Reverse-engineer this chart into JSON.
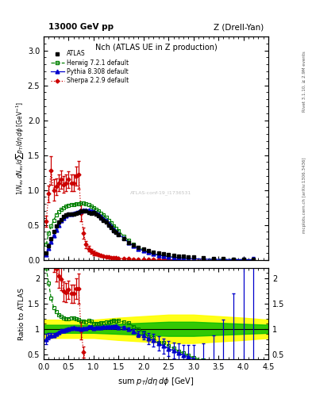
{
  "title_top_left": "13000 GeV pp",
  "title_top_right": "Z (Drell-Yan)",
  "plot_title": "Nch (ATLAS UE in Z production)",
  "ylabel_main": "1/N$_{ev}$ dN$_{ev}$/dsum p$_T$/d$\\eta$ d$\\phi$  [GeV$^{-1}$]",
  "ylabel_ratio": "Ratio to ATLAS",
  "xlabel": "sum p$_T$/d$\\eta$ d$\\phi$ [GeV]",
  "right_label1": "Rivet 3.1.10, ≥ 2.9M events",
  "right_label2": "mcplots.cern.ch [arXiv:1306.3436]",
  "watermark": "ATLAS-conf-19_I1736531",
  "atlas_x": [
    0.05,
    0.1,
    0.15,
    0.2,
    0.25,
    0.3,
    0.35,
    0.4,
    0.45,
    0.5,
    0.55,
    0.6,
    0.65,
    0.7,
    0.75,
    0.8,
    0.85,
    0.9,
    0.95,
    1.0,
    1.05,
    1.1,
    1.15,
    1.2,
    1.25,
    1.3,
    1.35,
    1.4,
    1.45,
    1.5,
    1.6,
    1.7,
    1.8,
    1.9,
    2.0,
    2.1,
    2.2,
    2.3,
    2.4,
    2.5,
    2.6,
    2.7,
    2.8,
    2.9,
    3.0,
    3.2,
    3.4,
    3.6,
    3.8,
    4.0,
    4.2
  ],
  "atlas_y": [
    0.1,
    0.2,
    0.3,
    0.4,
    0.48,
    0.54,
    0.58,
    0.62,
    0.64,
    0.65,
    0.65,
    0.65,
    0.67,
    0.68,
    0.7,
    0.7,
    0.7,
    0.68,
    0.67,
    0.68,
    0.65,
    0.63,
    0.6,
    0.57,
    0.54,
    0.5,
    0.46,
    0.42,
    0.39,
    0.36,
    0.3,
    0.25,
    0.21,
    0.18,
    0.15,
    0.13,
    0.11,
    0.095,
    0.083,
    0.072,
    0.063,
    0.055,
    0.048,
    0.042,
    0.037,
    0.028,
    0.022,
    0.017,
    0.013,
    0.01,
    0.008
  ],
  "atlas_yerr": [
    0.008,
    0.01,
    0.01,
    0.01,
    0.01,
    0.01,
    0.01,
    0.01,
    0.01,
    0.01,
    0.01,
    0.01,
    0.01,
    0.01,
    0.01,
    0.01,
    0.01,
    0.01,
    0.01,
    0.01,
    0.01,
    0.01,
    0.01,
    0.01,
    0.01,
    0.01,
    0.01,
    0.01,
    0.01,
    0.01,
    0.01,
    0.01,
    0.01,
    0.01,
    0.01,
    0.01,
    0.01,
    0.009,
    0.008,
    0.007,
    0.006,
    0.006,
    0.005,
    0.005,
    0.004,
    0.004,
    0.003,
    0.003,
    0.002,
    0.002,
    0.002
  ],
  "herwig_x": [
    0.05,
    0.1,
    0.15,
    0.2,
    0.25,
    0.3,
    0.35,
    0.4,
    0.45,
    0.5,
    0.55,
    0.6,
    0.65,
    0.7,
    0.75,
    0.8,
    0.85,
    0.9,
    0.95,
    1.0,
    1.05,
    1.1,
    1.15,
    1.2,
    1.25,
    1.3,
    1.35,
    1.4,
    1.45,
    1.5,
    1.6,
    1.7,
    1.8,
    1.9,
    2.0,
    2.1,
    2.2,
    2.3,
    2.4,
    2.5,
    2.6,
    2.7,
    2.8,
    2.9,
    3.0,
    3.2,
    3.4,
    3.6,
    3.8,
    4.0,
    4.2
  ],
  "herwig_y": [
    0.22,
    0.38,
    0.48,
    0.57,
    0.64,
    0.69,
    0.72,
    0.75,
    0.77,
    0.78,
    0.79,
    0.79,
    0.8,
    0.8,
    0.81,
    0.81,
    0.8,
    0.79,
    0.77,
    0.75,
    0.72,
    0.7,
    0.67,
    0.64,
    0.61,
    0.57,
    0.53,
    0.49,
    0.45,
    0.42,
    0.34,
    0.28,
    0.22,
    0.18,
    0.14,
    0.11,
    0.09,
    0.07,
    0.06,
    0.048,
    0.039,
    0.031,
    0.025,
    0.02,
    0.016,
    0.011,
    0.008,
    0.005,
    0.004,
    0.003,
    0.002
  ],
  "pythia_x": [
    0.05,
    0.1,
    0.15,
    0.2,
    0.25,
    0.3,
    0.35,
    0.4,
    0.45,
    0.5,
    0.55,
    0.6,
    0.65,
    0.7,
    0.75,
    0.8,
    0.85,
    0.9,
    0.95,
    1.0,
    1.05,
    1.1,
    1.15,
    1.2,
    1.25,
    1.3,
    1.35,
    1.4,
    1.45,
    1.5,
    1.6,
    1.7,
    1.8,
    1.9,
    2.0,
    2.1,
    2.2,
    2.3,
    2.4,
    2.5,
    2.6,
    2.7,
    2.8,
    2.9,
    3.0,
    3.2,
    3.4,
    3.6,
    3.8,
    4.0,
    4.2
  ],
  "pythia_y": [
    0.08,
    0.17,
    0.26,
    0.35,
    0.43,
    0.5,
    0.56,
    0.6,
    0.63,
    0.65,
    0.66,
    0.67,
    0.68,
    0.69,
    0.7,
    0.71,
    0.71,
    0.71,
    0.7,
    0.69,
    0.67,
    0.65,
    0.62,
    0.59,
    0.56,
    0.52,
    0.48,
    0.44,
    0.41,
    0.37,
    0.31,
    0.25,
    0.2,
    0.16,
    0.13,
    0.105,
    0.085,
    0.068,
    0.055,
    0.044,
    0.036,
    0.029,
    0.023,
    0.019,
    0.015,
    0.01,
    0.007,
    0.005,
    0.004,
    0.003,
    0.002
  ],
  "pythia_yerr": [
    0.01,
    0.012,
    0.014,
    0.014,
    0.014,
    0.014,
    0.014,
    0.014,
    0.014,
    0.013,
    0.013,
    0.012,
    0.012,
    0.012,
    0.012,
    0.012,
    0.012,
    0.012,
    0.012,
    0.011,
    0.011,
    0.01,
    0.01,
    0.01,
    0.009,
    0.009,
    0.009,
    0.008,
    0.008,
    0.008,
    0.008,
    0.008,
    0.008,
    0.01,
    0.012,
    0.014,
    0.014,
    0.013,
    0.012,
    0.011,
    0.01,
    0.01,
    0.01,
    0.01,
    0.01,
    0.01,
    0.012,
    0.015,
    0.018,
    0.025,
    0.04
  ],
  "sherpa_x": [
    0.05,
    0.1,
    0.15,
    0.2,
    0.25,
    0.3,
    0.35,
    0.4,
    0.45,
    0.5,
    0.55,
    0.6,
    0.65,
    0.7,
    0.75,
    0.8,
    0.85,
    0.9,
    0.95,
    1.0,
    1.05,
    1.1,
    1.15,
    1.2,
    1.25,
    1.3,
    1.35,
    1.4,
    1.45,
    1.5,
    1.6,
    1.7,
    1.8,
    1.9,
    2.0,
    2.1,
    2.2,
    2.3,
    2.4,
    2.5,
    2.6,
    2.7,
    2.8,
    2.9,
    3.0,
    3.2,
    3.4,
    3.6,
    3.8,
    4.0,
    4.2
  ],
  "sherpa_y": [
    0.55,
    0.95,
    1.28,
    1.0,
    1.05,
    1.1,
    1.15,
    1.08,
    1.1,
    1.15,
    1.1,
    1.1,
    1.2,
    1.22,
    0.67,
    0.38,
    0.22,
    0.16,
    0.12,
    0.1,
    0.085,
    0.072,
    0.062,
    0.053,
    0.046,
    0.04,
    0.035,
    0.03,
    0.026,
    0.023,
    0.018,
    0.014,
    0.011,
    0.009,
    0.008,
    0.007,
    0.006,
    0.005,
    0.004,
    0.004,
    0.003,
    0.003,
    0.002,
    0.002,
    0.002,
    0.001,
    0.001,
    0.001,
    0.001,
    0.001,
    0.001
  ],
  "sherpa_yerr": [
    0.08,
    0.12,
    0.2,
    0.15,
    0.12,
    0.12,
    0.13,
    0.12,
    0.12,
    0.12,
    0.12,
    0.12,
    0.14,
    0.2,
    0.12,
    0.08,
    0.05,
    0.04,
    0.03,
    0.03,
    0.025,
    0.02,
    0.018,
    0.015,
    0.013,
    0.012,
    0.01,
    0.009,
    0.008,
    0.007,
    0.006,
    0.005,
    0.004,
    0.003,
    0.003,
    0.003,
    0.002,
    0.002,
    0.002,
    0.002,
    0.001,
    0.001,
    0.001,
    0.001,
    0.001,
    0.001,
    0.001,
    0.001,
    0.001,
    0.001,
    0.001
  ],
  "atlas_color": "#000000",
  "herwig_color": "#008000",
  "pythia_color": "#0000cc",
  "sherpa_color": "#cc0000",
  "band_yellow": "#ffff00",
  "band_green": "#00bb00",
  "xlim": [
    0.0,
    4.5
  ],
  "ylim_main": [
    0.0,
    3.2
  ],
  "ylim_ratio": [
    0.4,
    2.2
  ],
  "ratio_band_x": [
    0.0,
    0.5,
    1.0,
    1.5,
    2.0,
    2.5,
    3.0,
    3.5,
    4.0,
    4.5
  ],
  "ratio_band_green_lo": [
    0.92,
    0.92,
    0.92,
    0.9,
    0.88,
    0.86,
    0.86,
    0.88,
    0.9,
    0.92
  ],
  "ratio_band_green_hi": [
    1.08,
    1.08,
    1.08,
    1.1,
    1.12,
    1.14,
    1.14,
    1.12,
    1.1,
    1.08
  ],
  "ratio_band_yellow_lo": [
    0.82,
    0.82,
    0.82,
    0.78,
    0.75,
    0.72,
    0.72,
    0.75,
    0.78,
    0.82
  ],
  "ratio_band_yellow_hi": [
    1.18,
    1.18,
    1.18,
    1.22,
    1.25,
    1.28,
    1.28,
    1.25,
    1.22,
    1.18
  ]
}
